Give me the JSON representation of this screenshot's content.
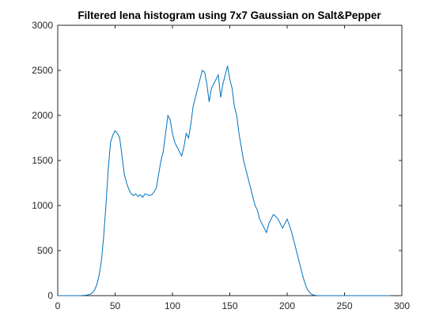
{
  "chart_data": {
    "type": "line",
    "title": "Filtered lena histogram using 7x7 Gaussian on Salt&Pepper",
    "xlabel": "",
    "ylabel": "",
    "xlim": [
      0,
      300
    ],
    "ylim": [
      0,
      3000
    ],
    "xticks": [
      0,
      50,
      100,
      150,
      200,
      250,
      300
    ],
    "yticks": [
      0,
      500,
      1000,
      1500,
      2000,
      2500,
      3000
    ],
    "grid": false,
    "legend": "none",
    "line_color": "#0072BD",
    "series": [
      {
        "x": [
          0,
          20,
          25,
          28,
          30,
          32,
          34,
          36,
          38,
          40,
          42,
          44,
          46,
          48,
          50,
          52,
          54,
          56,
          58,
          60,
          62,
          64,
          66,
          68,
          70,
          72,
          74,
          76,
          78,
          80,
          82,
          84,
          86,
          88,
          90,
          92,
          94,
          96,
          98,
          100,
          102,
          104,
          106,
          108,
          110,
          112,
          114,
          116,
          118,
          120,
          122,
          124,
          126,
          128,
          130,
          132,
          134,
          136,
          138,
          140,
          142,
          144,
          146,
          148,
          150,
          152,
          154,
          156,
          158,
          160,
          162,
          164,
          166,
          168,
          170,
          172,
          174,
          176,
          178,
          180,
          182,
          184,
          186,
          188,
          190,
          192,
          194,
          196,
          198,
          200,
          202,
          204,
          206,
          208,
          210,
          212,
          214,
          216,
          218,
          220,
          222,
          224,
          226,
          228,
          230,
          232,
          240,
          260,
          290
        ],
        "values": [
          0,
          0,
          5,
          15,
          30,
          60,
          120,
          220,
          380,
          650,
          1000,
          1400,
          1700,
          1780,
          1830,
          1800,
          1750,
          1550,
          1350,
          1250,
          1180,
          1130,
          1110,
          1130,
          1100,
          1120,
          1090,
          1130,
          1120,
          1110,
          1120,
          1150,
          1200,
          1350,
          1500,
          1600,
          1800,
          2000,
          1950,
          1800,
          1700,
          1650,
          1600,
          1550,
          1650,
          1800,
          1750,
          1900,
          2100,
          2200,
          2300,
          2400,
          2500,
          2480,
          2350,
          2150,
          2300,
          2350,
          2400,
          2450,
          2200,
          2350,
          2450,
          2550,
          2400,
          2300,
          2100,
          2000,
          1800,
          1650,
          1500,
          1400,
          1300,
          1200,
          1100,
          1000,
          950,
          850,
          800,
          750,
          700,
          800,
          850,
          900,
          880,
          850,
          800,
          750,
          800,
          850,
          780,
          700,
          600,
          500,
          400,
          300,
          200,
          120,
          60,
          30,
          10,
          5,
          0,
          0,
          0,
          0,
          0,
          0,
          0
        ]
      }
    ]
  }
}
